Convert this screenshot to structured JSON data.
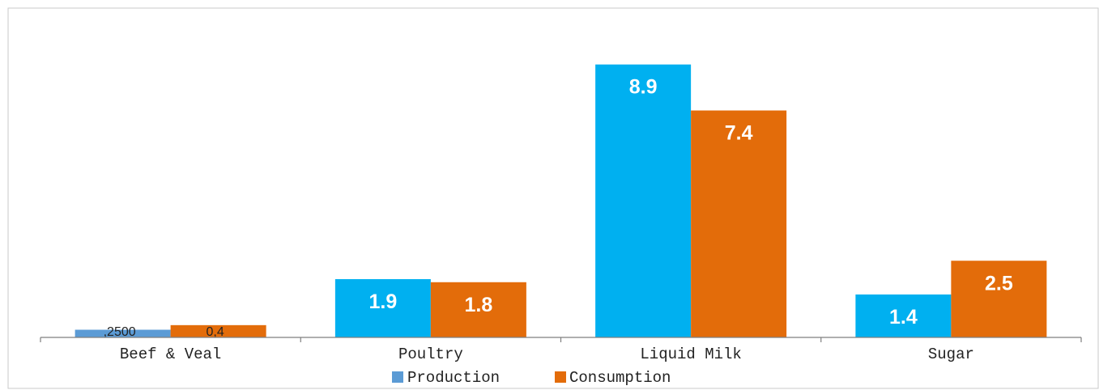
{
  "colors": {
    "production_bright": "#00b0f0",
    "production_small": "#5b9bd5",
    "consumption": "#e36c0a"
  },
  "chart_data": {
    "type": "bar",
    "categories": [
      "Beef & Veal",
      "Poultry",
      "Liquid Milk",
      "Sugar"
    ],
    "series": [
      {
        "name": "Production",
        "values": [
          0.25,
          1.9,
          8.9,
          1.4
        ],
        "labels": [
          ",2500",
          "1.9",
          "8.9",
          "1.4"
        ]
      },
      {
        "name": "Consumption",
        "values": [
          0.4,
          1.8,
          7.4,
          2.5
        ],
        "labels": [
          "0,4",
          "1.8",
          "7.4",
          "2.5"
        ]
      }
    ],
    "legend_position": "bottom",
    "grid": false
  }
}
